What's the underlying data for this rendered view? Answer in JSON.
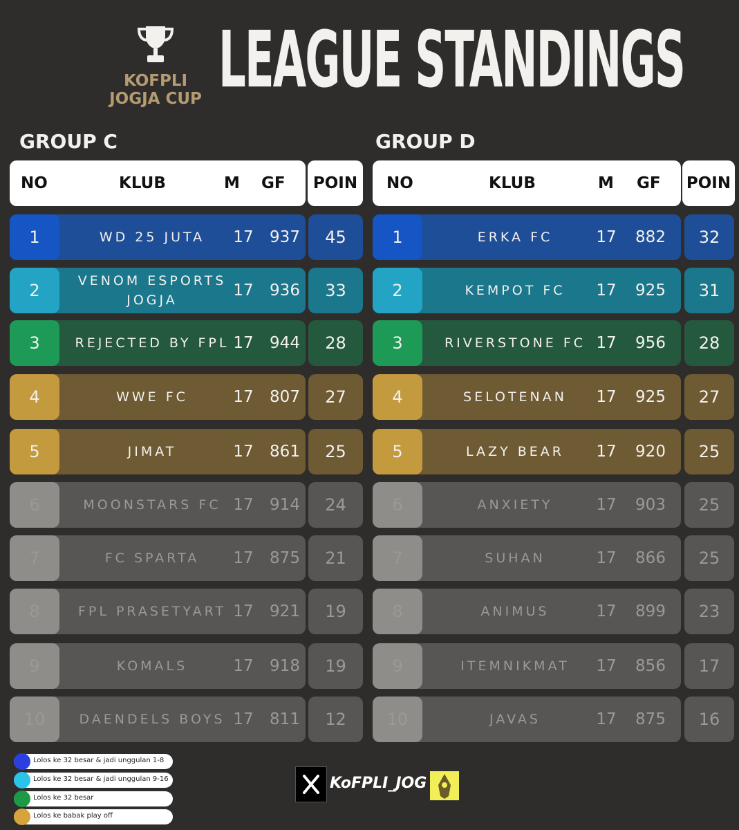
{
  "header": {
    "brand_line1": "KOFPLI",
    "brand_line2": "JOGJA CUP",
    "title": "LEAGUE STANDINGS",
    "trophy_icon": "trophy-icon"
  },
  "columns": {
    "no": "NO",
    "klub": "KLUB",
    "m": "M",
    "gf": "GF",
    "poin": "POIN"
  },
  "colors": {
    "blue": "#1e4e98",
    "blue_num": "#1655c4",
    "teal": "#1a778c",
    "teal_num": "#23a4c4",
    "green": "#24593d",
    "green_num": "#1e9a57",
    "gold": "#6e5a33",
    "gold_num": "#c49a3e",
    "gray": "#575654",
    "gray_num": "#8f8d89"
  },
  "groups": [
    {
      "title": "GROUP C",
      "rows": [
        {
          "no": "1",
          "club": "WD 25 JUTA",
          "m": "17",
          "gf": "937",
          "poin": "45",
          "tier": "blue"
        },
        {
          "no": "2",
          "club": "VENOM ESPORTS JOGJA",
          "m": "17",
          "gf": "936",
          "poin": "33",
          "tier": "teal"
        },
        {
          "no": "3",
          "club": "REJECTED BY FPL",
          "m": "17",
          "gf": "944",
          "poin": "28",
          "tier": "green"
        },
        {
          "no": "4",
          "club": "WWE FC",
          "m": "17",
          "gf": "807",
          "poin": "27",
          "tier": "gold"
        },
        {
          "no": "5",
          "club": "JIMAT",
          "m": "17",
          "gf": "861",
          "poin": "25",
          "tier": "gold"
        },
        {
          "no": "6",
          "club": "MOONSTARS FC",
          "m": "17",
          "gf": "914",
          "poin": "24",
          "tier": "gray"
        },
        {
          "no": "7",
          "club": "FC SPARTA",
          "m": "17",
          "gf": "875",
          "poin": "21",
          "tier": "gray"
        },
        {
          "no": "8",
          "club": "FPL PRASETYART",
          "m": "17",
          "gf": "921",
          "poin": "19",
          "tier": "gray"
        },
        {
          "no": "9",
          "club": "KOMALS",
          "m": "17",
          "gf": "918",
          "poin": "19",
          "tier": "gray"
        },
        {
          "no": "10",
          "club": "DAENDELS BOYS",
          "m": "17",
          "gf": "811",
          "poin": "12",
          "tier": "gray"
        }
      ]
    },
    {
      "title": "GROUP D",
      "rows": [
        {
          "no": "1",
          "club": "ERKA FC",
          "m": "17",
          "gf": "882",
          "poin": "32",
          "tier": "blue"
        },
        {
          "no": "2",
          "club": "KEMPOT FC",
          "m": "17",
          "gf": "925",
          "poin": "31",
          "tier": "teal"
        },
        {
          "no": "3",
          "club": "RIVERSTONE FC",
          "m": "17",
          "gf": "956",
          "poin": "28",
          "tier": "green"
        },
        {
          "no": "4",
          "club": "SELOTENAN",
          "m": "17",
          "gf": "925",
          "poin": "27",
          "tier": "gold"
        },
        {
          "no": "5",
          "club": "LAZY BEAR",
          "m": "17",
          "gf": "920",
          "poin": "25",
          "tier": "gold"
        },
        {
          "no": "6",
          "club": "ANXIETY",
          "m": "17",
          "gf": "903",
          "poin": "25",
          "tier": "gray"
        },
        {
          "no": "7",
          "club": "SUHAN",
          "m": "17",
          "gf": "866",
          "poin": "25",
          "tier": "gray"
        },
        {
          "no": "8",
          "club": "ANIMUS",
          "m": "17",
          "gf": "899",
          "poin": "23",
          "tier": "gray"
        },
        {
          "no": "9",
          "club": "ITEMNIKMAT",
          "m": "17",
          "gf": "856",
          "poin": "17",
          "tier": "gray"
        },
        {
          "no": "10",
          "club": "JAVAS",
          "m": "17",
          "gf": "875",
          "poin": "16",
          "tier": "gray"
        }
      ]
    }
  ],
  "legend": [
    {
      "text": "Lolos ke 32 besar & jadi unggulan 1-8",
      "color": "#2b3fe0"
    },
    {
      "text": "Lolos ke 32 besar & jadi unggulan 9-16",
      "color": "#29c4ea"
    },
    {
      "text": "Lolos ke 32 besar",
      "color": "#1e9a47"
    },
    {
      "text": "Lolos ke babak play off",
      "color": "#d6a43c"
    }
  ],
  "social": {
    "platform_icon": "x-logo-icon",
    "handle": "KoFPLI_JOG",
    "emblem_icon": "wayang-emblem-icon"
  }
}
